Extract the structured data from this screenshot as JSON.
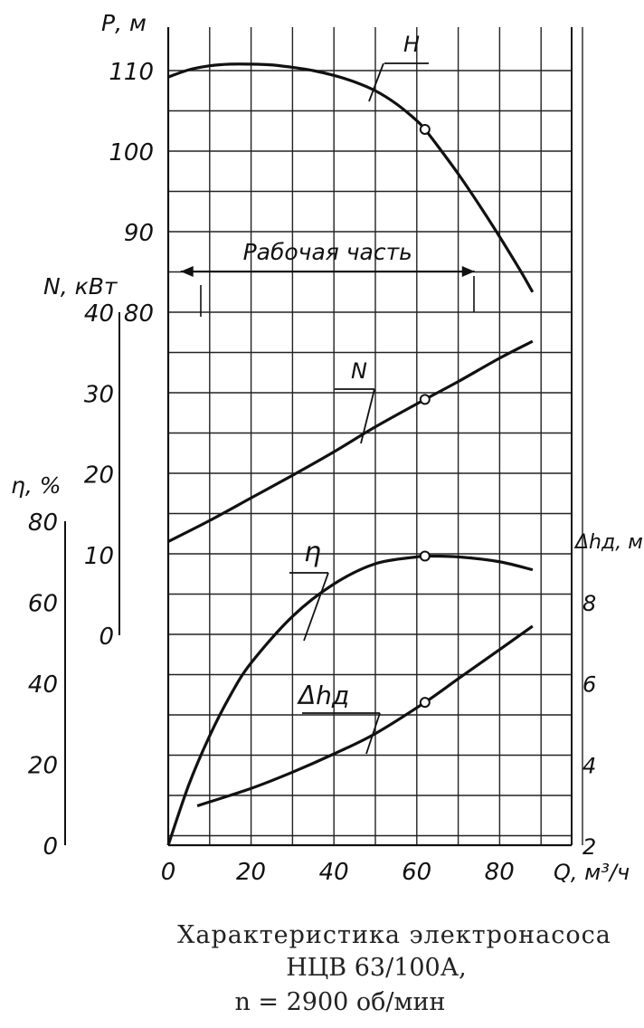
{
  "chart_data": {
    "type": "line",
    "x_axis": {
      "label": "Q, м³/ч",
      "ticks": [
        "0",
        "20",
        "40",
        "60",
        "80"
      ],
      "range": [
        0,
        90
      ],
      "grid": true
    },
    "axes": {
      "H": {
        "label": "Р, м",
        "ticks": [
          "80",
          "90",
          "100",
          "110"
        ],
        "range": [
          80,
          110
        ]
      },
      "N": {
        "label": "N, кВт",
        "ticks": [
          "0",
          "10",
          "20",
          "30",
          "40"
        ],
        "range": [
          0,
          40
        ]
      },
      "eta": {
        "label": "η, %",
        "ticks": [
          "0",
          "20",
          "40",
          "60",
          "80"
        ],
        "range": [
          0,
          80
        ]
      },
      "dh": {
        "label": "Δhд, м",
        "ticks": [
          "2",
          "4",
          "6",
          "8"
        ],
        "range": [
          2,
          8
        ]
      }
    },
    "series": [
      {
        "name": "H",
        "axis": "H",
        "x": [
          0,
          5,
          10,
          15,
          20,
          25,
          30,
          35,
          40,
          45,
          50,
          55,
          60,
          62,
          65,
          70,
          75,
          80,
          85,
          88
        ],
        "y": [
          109.2,
          110.1,
          110.6,
          110.8,
          110.8,
          110.7,
          110.4,
          110,
          109.4,
          108.6,
          107.5,
          105.9,
          103.8,
          102.7,
          100.7,
          97.2,
          93.4,
          89.4,
          85.2,
          82.5
        ],
        "markers": [
          [
            62,
            102.7
          ]
        ]
      },
      {
        "name": "N",
        "axis": "N",
        "x": [
          0,
          10,
          20,
          30,
          40,
          50,
          62,
          70,
          80,
          88
        ],
        "y": [
          11.6,
          14.2,
          17,
          19.8,
          22.7,
          25.8,
          29.2,
          31.4,
          34.3,
          36.4
        ],
        "markers": [
          [
            62,
            29.2
          ]
        ]
      },
      {
        "name": "η",
        "axis": "eta",
        "x": [
          0,
          5,
          10,
          15,
          20,
          30,
          40,
          50,
          60,
          62,
          70,
          80,
          88
        ],
        "y": [
          0,
          15,
          27,
          37,
          45,
          56.5,
          64.5,
          69.5,
          71.2,
          71.4,
          71.2,
          70,
          68
        ],
        "markers": [
          [
            62,
            71.4
          ]
        ]
      },
      {
        "name": "Δhд",
        "axis": "dh",
        "x": [
          7,
          20,
          30,
          40,
          50,
          62,
          70,
          80,
          88
        ],
        "y": [
          2.97,
          3.4,
          3.8,
          4.25,
          4.75,
          5.52,
          6.1,
          6.82,
          7.4
        ],
        "markers": [
          [
            62,
            5.52
          ]
        ]
      }
    ],
    "annotations": [
      {
        "text": "Рабочая часть",
        "x_from": 3,
        "x_to": 74
      }
    ],
    "curve_labels": [
      "H",
      "N",
      "η",
      "Δhд"
    ]
  },
  "caption": {
    "line1": "Характеристика электронасоса",
    "line2": "НЦВ 63/100А,",
    "line3": "n = 2900 об/мин"
  }
}
